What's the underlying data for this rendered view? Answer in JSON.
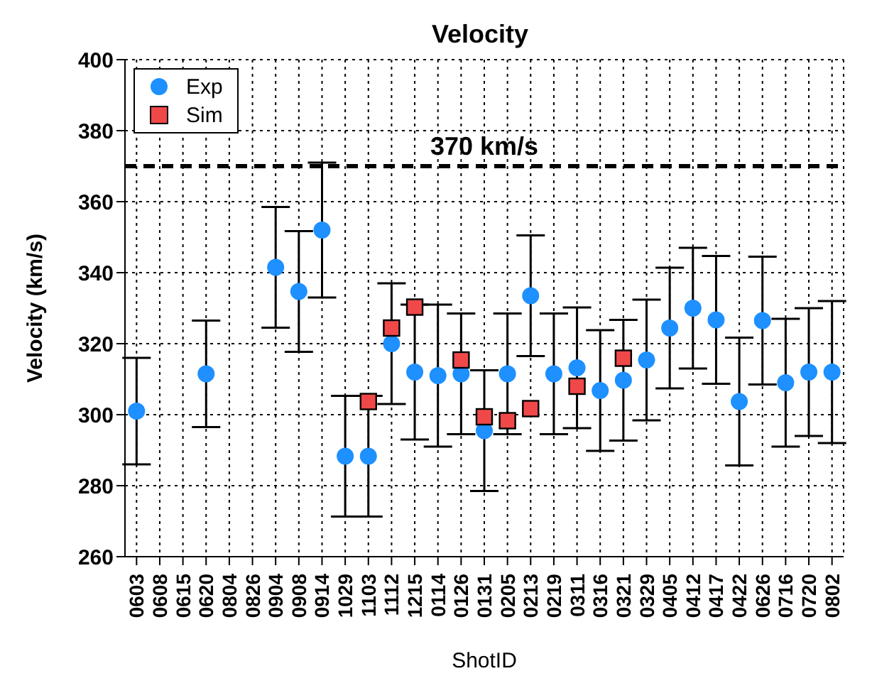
{
  "chart_data": {
    "type": "scatter",
    "title": "Velocity",
    "xlabel": "ShotID",
    "ylabel": "Velocity (km/s)",
    "categories": [
      "0603",
      "0608",
      "0615",
      "0620",
      "0804",
      "0826",
      "0904",
      "0908",
      "0914",
      "1029",
      "1103",
      "1112",
      "1215",
      "0114",
      "0126",
      "0131",
      "0205",
      "0213",
      "0219",
      "0311",
      "0316",
      "0321",
      "0329",
      "0405",
      "0412",
      "0417",
      "0422",
      "0626",
      "0716",
      "0720",
      "0802"
    ],
    "series": [
      {
        "name": "Exp",
        "color": "#1e90ff",
        "marker": "circle",
        "values": [
          301,
          null,
          null,
          311.5,
          null,
          null,
          341.5,
          334.7,
          352,
          288.3,
          288.3,
          320,
          312,
          311,
          311.5,
          295.5,
          311.5,
          333.5,
          311.5,
          313.2,
          306.8,
          309.7,
          315.4,
          324.4,
          330,
          326.7,
          303.7,
          326.5,
          309,
          312,
          312
        ],
        "errors": [
          15,
          null,
          null,
          15,
          null,
          null,
          17,
          17,
          19,
          17,
          17,
          17,
          19,
          20,
          17,
          17,
          17,
          17,
          17,
          17,
          17,
          17,
          17,
          17,
          17,
          18,
          18,
          18,
          18,
          18,
          20
        ]
      },
      {
        "name": "Sim",
        "color": "#f04848",
        "marker": "square",
        "values": [
          null,
          null,
          null,
          null,
          null,
          null,
          null,
          null,
          null,
          null,
          303.7,
          324.4,
          330.3,
          null,
          315.4,
          299.4,
          298.3,
          301.7,
          null,
          308,
          null,
          315.9,
          null,
          null,
          null,
          null,
          null,
          null,
          null,
          null,
          null
        ]
      }
    ],
    "ylim": [
      260,
      400
    ],
    "yticks": [
      260,
      280,
      300,
      320,
      340,
      360,
      380,
      400
    ],
    "ref_lines": [
      {
        "axis": "y",
        "value": 370,
        "label": "370 km/s",
        "color": "#000000",
        "line_style": "dashed"
      }
    ],
    "grid": true,
    "legend": "top left"
  }
}
